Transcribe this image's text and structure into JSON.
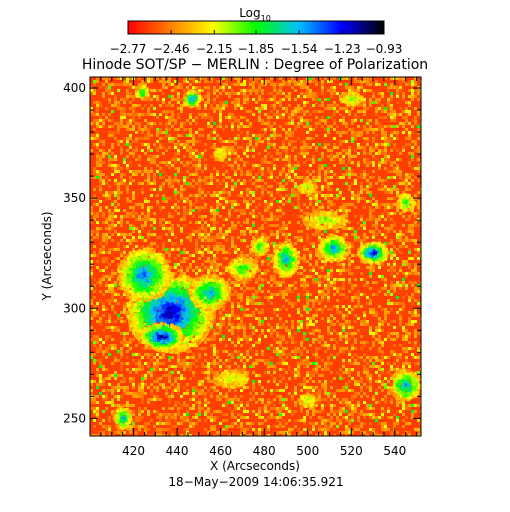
{
  "chart_data": {
    "type": "heatmap",
    "title": "Hinode SOT/SP − MERLIN : Degree of Polarization",
    "xlabel": "X (Arcseconds)",
    "ylabel": "Y (Arcseconds)",
    "timestamp": "18−May−2009 14:06:35.921",
    "xlim": [
      400,
      552
    ],
    "ylim": [
      242,
      405
    ],
    "x_ticks": [
      420,
      440,
      460,
      480,
      500,
      520,
      540
    ],
    "x_tick_labels": [
      "420",
      "440",
      "460",
      "480",
      "500",
      "520",
      "540"
    ],
    "y_ticks": [
      250,
      300,
      350,
      400
    ],
    "y_tick_labels": [
      "250",
      "300",
      "350",
      "400"
    ],
    "colorbar": {
      "label_base": "Log",
      "label_sub": "10",
      "scale": "log10",
      "range": [
        -2.77,
        -0.93
      ],
      "ticks": [
        -2.77,
        -2.46,
        -2.15,
        -1.85,
        -1.54,
        -1.23,
        -0.93
      ],
      "tick_labels": [
        "−2.77",
        "−2.46",
        "−2.15",
        "−1.85",
        "−1.54",
        "−1.23",
        "−0.93"
      ],
      "colors": [
        "#ff0000",
        "#ff8000",
        "#ffff00",
        "#00ff00",
        "#00c0ff",
        "#0000ff",
        "#000000"
      ]
    },
    "regions": [
      {
        "x": 437,
        "y": 298,
        "rx": 20,
        "ry": 18,
        "level": -1.05
      },
      {
        "x": 425,
        "y": 315,
        "rx": 12,
        "ry": 12,
        "level": -1.35
      },
      {
        "x": 455,
        "y": 307,
        "rx": 9,
        "ry": 8,
        "level": -1.45
      },
      {
        "x": 433,
        "y": 287,
        "rx": 10,
        "ry": 6,
        "level": -1.0
      },
      {
        "x": 490,
        "y": 322,
        "rx": 6,
        "ry": 8,
        "level": -1.5
      },
      {
        "x": 512,
        "y": 327,
        "rx": 7,
        "ry": 6,
        "level": -1.45
      },
      {
        "x": 530,
        "y": 325,
        "rx": 7,
        "ry": 5,
        "level": -1.15
      },
      {
        "x": 470,
        "y": 318,
        "rx": 7,
        "ry": 5,
        "level": -1.8
      },
      {
        "x": 545,
        "y": 265,
        "rx": 7,
        "ry": 7,
        "level": -1.45
      },
      {
        "x": 447,
        "y": 395,
        "rx": 4,
        "ry": 4,
        "level": -1.45
      },
      {
        "x": 424,
        "y": 398,
        "rx": 3,
        "ry": 3,
        "level": -1.6
      },
      {
        "x": 520,
        "y": 395,
        "rx": 5,
        "ry": 3,
        "level": -1.9
      },
      {
        "x": 478,
        "y": 328,
        "rx": 4,
        "ry": 4,
        "level": -1.75
      },
      {
        "x": 415,
        "y": 250,
        "rx": 4,
        "ry": 5,
        "level": -1.5
      },
      {
        "x": 460,
        "y": 370,
        "rx": 3,
        "ry": 3,
        "level": -2.0
      },
      {
        "x": 500,
        "y": 355,
        "rx": 4,
        "ry": 3,
        "level": -2.0
      },
      {
        "x": 545,
        "y": 348,
        "rx": 4,
        "ry": 4,
        "level": -1.8
      },
      {
        "x": 465,
        "y": 268,
        "rx": 8,
        "ry": 4,
        "level": -2.1
      },
      {
        "x": 500,
        "y": 258,
        "rx": 4,
        "ry": 3,
        "level": -2.0
      },
      {
        "x": 508,
        "y": 340,
        "rx": 10,
        "ry": 4,
        "level": -2.0
      }
    ]
  }
}
